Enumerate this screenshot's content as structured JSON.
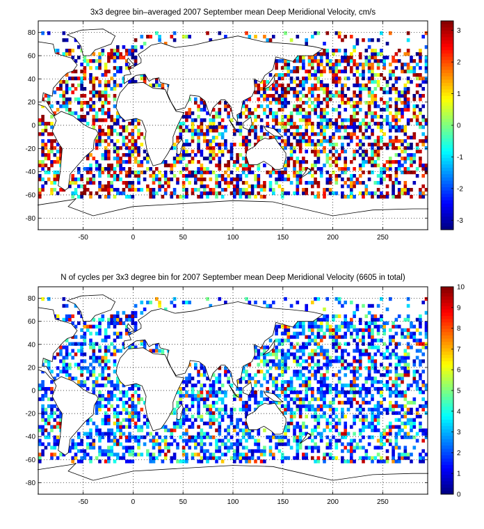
{
  "chart_data": [
    {
      "type": "heatmap",
      "title": "3x3 degree bin–averaged 2007 September mean Deep Meridional Velocity, cm/s",
      "xlim": [
        -95,
        295
      ],
      "ylim": [
        -90,
        90
      ],
      "x_ticks": [
        "-50",
        "0",
        "50",
        "100",
        "150",
        "200",
        "250"
      ],
      "x_tick_values": [
        -50,
        0,
        50,
        100,
        150,
        200,
        250
      ],
      "y_ticks": [
        "80",
        "60",
        "40",
        "20",
        "0",
        "-20",
        "-40",
        "-60",
        "-80"
      ],
      "y_tick_values": [
        80,
        60,
        40,
        20,
        0,
        -20,
        -40,
        -60,
        -80
      ],
      "bin_size_deg": 3,
      "colorbar": {
        "min": -3.3,
        "max": 3.3,
        "ticks": [
          "3",
          "2",
          "1",
          "0",
          "-1",
          "-2",
          "-3"
        ],
        "tick_values": [
          3,
          2,
          1,
          0,
          -1,
          -2,
          -3
        ],
        "colormap": "jet"
      },
      "grid": true,
      "background_map": "world coastlines"
    },
    {
      "type": "heatmap",
      "title": "N of cycles per 3x3 degree bin for 2007 September mean Deep Meridional Velocity (6605 in total)",
      "xlim": [
        -95,
        295
      ],
      "ylim": [
        -90,
        90
      ],
      "x_ticks": [
        "-50",
        "0",
        "50",
        "100",
        "150",
        "200",
        "250"
      ],
      "x_tick_values": [
        -50,
        0,
        50,
        100,
        150,
        200,
        250
      ],
      "y_ticks": [
        "80",
        "60",
        "40",
        "20",
        "0",
        "-20",
        "-40",
        "-60",
        "-80"
      ],
      "y_tick_values": [
        80,
        60,
        40,
        20,
        0,
        -20,
        -40,
        -60,
        -80
      ],
      "bin_size_deg": 3,
      "total_cycles": 6605,
      "colorbar": {
        "min": 0,
        "max": 10,
        "ticks": [
          "10",
          "9",
          "8",
          "7",
          "6",
          "5",
          "4",
          "3",
          "2",
          "1",
          "0"
        ],
        "tick_values": [
          10,
          9,
          8,
          7,
          6,
          5,
          4,
          3,
          2,
          1,
          0
        ],
        "colormap": "jet"
      },
      "grid": true,
      "background_map": "world coastlines"
    }
  ]
}
